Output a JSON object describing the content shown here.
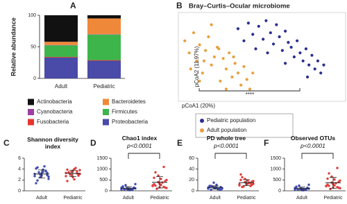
{
  "chart_data": [
    {
      "panel": "A",
      "type": "bar",
      "stacked": true,
      "ylabel": "Relative abundance",
      "categories": [
        "Adult",
        "Pediatric"
      ],
      "ylim": [
        0,
        100
      ],
      "yticks": [
        0,
        50,
        100
      ],
      "series": [
        {
          "name": "Actinobacteria",
          "color": "#111111",
          "values": [
            42,
            5
          ]
        },
        {
          "name": "Bacteroidetes",
          "color": "#f0883a",
          "values": [
            5,
            25
          ]
        },
        {
          "name": "Cyanobacteria",
          "color": "#9b3fa0",
          "values": [
            0.5,
            0.5
          ]
        },
        {
          "name": "Firmicutes",
          "color": "#3db54a",
          "values": [
            18.5,
            40.5
          ]
        },
        {
          "name": "Fusobacteria",
          "color": "#e8342e",
          "values": [
            1,
            1
          ]
        },
        {
          "name": "Proteobacteria",
          "color": "#4a4aa8",
          "values": [
            33,
            28
          ]
        }
      ]
    },
    {
      "panel": "B",
      "type": "scatter",
      "title": "Bray–Curtis–Ocular microbiome",
      "xlabel": "pCoA1 (20%)",
      "ylabel": "pCoA2 (11.97%)",
      "xlim": [
        0,
        1
      ],
      "ylim": [
        0,
        1
      ],
      "annotation": "****",
      "series": [
        {
          "name": "Pediatric population",
          "color": "#2b2f8f",
          "x": [
            0.38,
            0.42,
            0.45,
            0.48,
            0.5,
            0.52,
            0.55,
            0.57,
            0.6,
            0.62,
            0.64,
            0.66,
            0.68,
            0.7,
            0.72,
            0.74,
            0.76,
            0.78,
            0.8,
            0.82,
            0.84,
            0.86,
            0.88,
            0.9,
            0.92,
            0.94,
            0.96,
            0.58,
            0.7,
            0.85
          ],
          "y": [
            0.85,
            0.7,
            0.92,
            0.78,
            0.6,
            0.88,
            0.72,
            0.95,
            0.8,
            0.66,
            0.9,
            0.75,
            0.58,
            0.82,
            0.68,
            0.62,
            0.5,
            0.7,
            0.55,
            0.45,
            0.6,
            0.4,
            0.52,
            0.35,
            0.45,
            0.3,
            0.4,
            0.55,
            0.42,
            0.25
          ]
        },
        {
          "name": "Adult population",
          "color": "#e8a040",
          "x": [
            0.02,
            0.05,
            0.08,
            0.1,
            0.12,
            0.14,
            0.16,
            0.18,
            0.2,
            0.22,
            0.24,
            0.26,
            0.28,
            0.3,
            0.32,
            0.34,
            0.36,
            0.38,
            0.4,
            0.42,
            0.44,
            0.46,
            0.48,
            0.06,
            0.15,
            0.25,
            0.35,
            0.12,
            0.3,
            0.2
          ],
          "y": [
            0.7,
            0.55,
            0.8,
            0.45,
            0.65,
            0.3,
            0.58,
            0.75,
            0.4,
            0.5,
            0.62,
            0.2,
            0.48,
            0.35,
            0.55,
            0.25,
            0.42,
            0.3,
            0.15,
            0.38,
            0.22,
            0.1,
            0.3,
            0.35,
            0.45,
            0.6,
            0.5,
            0.2,
            0.1,
            0.9
          ]
        }
      ]
    },
    {
      "panel": "C",
      "type": "strip",
      "title": "Shannon diversity index",
      "categories": [
        "Adult",
        "Pediatric"
      ],
      "ylim": [
        0,
        6
      ],
      "yticks": [
        0,
        2,
        4,
        6
      ],
      "groups": [
        {
          "color": "#3f4bb0",
          "mean": 3.1,
          "sd": 0.75,
          "values": [
            3.1,
            2.5,
            3.6,
            4.1,
            2.8,
            3.3,
            1.9,
            3.9,
            2.2,
            3.4,
            4.5,
            2.7,
            3.0,
            3.7,
            1.4,
            3.2,
            2.9,
            4.3,
            3.5,
            2.6
          ]
        },
        {
          "color": "#e03c3c",
          "mean": 3.2,
          "sd": 0.6,
          "values": [
            3.3,
            2.9,
            3.6,
            3.9,
            2.5,
            3.1,
            3.4,
            2.1,
            3.8,
            3.0,
            4.2,
            2.7,
            3.5,
            3.2,
            1.8,
            3.7,
            2.8,
            3.4,
            4.0,
            3.1
          ]
        }
      ]
    },
    {
      "panel": "D",
      "type": "strip",
      "title": "Chao1 index",
      "subtitle": "p<0.0001",
      "categories": [
        "Adult",
        "Pediatric"
      ],
      "ylim": [
        0,
        1500
      ],
      "yticks": [
        0,
        500,
        1000,
        1500
      ],
      "groups": [
        {
          "color": "#3f4bb0",
          "mean": 116,
          "sd": 75,
          "values": [
            60,
            120,
            90,
            200,
            45,
            150,
            80,
            30,
            110,
            260,
            70,
            140,
            95,
            55,
            180,
            35,
            125,
            65,
            100,
            310
          ]
        },
        {
          "color": "#e03c3c",
          "mean": 390,
          "sd": 260,
          "values": [
            250,
            400,
            180,
            600,
            320,
            150,
            850,
            270,
            500,
            90,
            380,
            220,
            700,
            1100,
            300,
            160,
            450,
            240,
            550,
            130
          ]
        }
      ]
    },
    {
      "panel": "E",
      "type": "strip",
      "title": "PD whole tree",
      "subtitle": "p<0.0001",
      "categories": [
        "Adult",
        "Pediatric"
      ],
      "ylim": [
        0,
        60
      ],
      "yticks": [
        0,
        20,
        40,
        60
      ],
      "groups": [
        {
          "color": "#3f4bb0",
          "mean": 6,
          "sd": 3,
          "values": [
            4,
            6,
            3,
            9,
            5,
            7,
            2,
            11,
            5,
            8,
            3,
            6,
            15,
            4,
            7,
            5,
            2,
            9,
            6,
            4
          ]
        },
        {
          "color": "#e03c3c",
          "mean": 15,
          "sd": 5.6,
          "values": [
            12,
            16,
            9,
            20,
            14,
            11,
            25,
            13,
            18,
            8,
            15,
            10,
            22,
            14,
            30,
            12,
            17,
            7,
            19,
            13
          ]
        }
      ]
    },
    {
      "panel": "F",
      "type": "strip",
      "title": "Observed OTUs",
      "subtitle": "p<0.0001",
      "categories": [
        "Adult",
        "Pediatric"
      ],
      "ylim": [
        0,
        1500
      ],
      "yticks": [
        0,
        500,
        1000,
        1500
      ],
      "groups": [
        {
          "color": "#3f4bb0",
          "mean": 106,
          "sd": 70,
          "values": [
            50,
            110,
            80,
            190,
            40,
            140,
            70,
            25,
            100,
            240,
            60,
            130,
            85,
            50,
            170,
            30,
            115,
            60,
            90,
            280
          ]
        },
        {
          "color": "#e03c3c",
          "mean": 366,
          "sd": 250,
          "values": [
            230,
            380,
            170,
            560,
            300,
            140,
            800,
            250,
            470,
            85,
            350,
            210,
            650,
            1050,
            280,
            150,
            420,
            230,
            520,
            120
          ]
        }
      ]
    }
  ]
}
